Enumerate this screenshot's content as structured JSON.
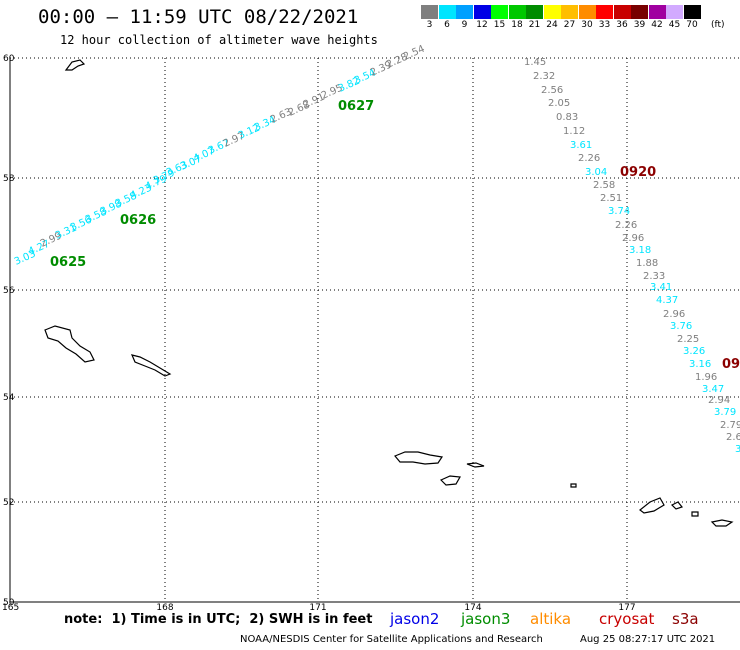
{
  "header": {
    "title": "00:00 – 11:59 UTC 08/22/2021",
    "subtitle": "12 hour collection of altimeter wave heights"
  },
  "legend": {
    "unit": "(ft)",
    "bins": [
      {
        "label": "3",
        "color": "#7f7f7f"
      },
      {
        "label": "6",
        "color": "#00e5ff"
      },
      {
        "label": "9",
        "color": "#00a0ff"
      },
      {
        "label": "12",
        "color": "#0000e6"
      },
      {
        "label": "15",
        "color": "#00ff00"
      },
      {
        "label": "18",
        "color": "#00c800"
      },
      {
        "label": "21",
        "color": "#008c00"
      },
      {
        "label": "24",
        "color": "#ffff00"
      },
      {
        "label": "27",
        "color": "#ffbe00"
      },
      {
        "label": "30",
        "color": "#ff8c00"
      },
      {
        "label": "33",
        "color": "#ff0000"
      },
      {
        "label": "36",
        "color": "#c80000"
      },
      {
        "label": "39",
        "color": "#780000"
      },
      {
        "label": "42",
        "color": "#a000a0"
      },
      {
        "label": "45",
        "color": "#d2aaff"
      },
      {
        "label": "70",
        "color": "#000000"
      }
    ]
  },
  "axes": {
    "x_ticks": [
      "165",
      "168",
      "171",
      "174",
      "177"
    ],
    "y_ticks": [
      "60",
      "58",
      "56",
      "54",
      "52",
      "50"
    ]
  },
  "tracks": [
    {
      "satellite": "jason3",
      "points": [
        {
          "value": "3.03",
          "color": "#00e5ff"
        },
        {
          "value": "4.27",
          "color": "#00e5ff"
        },
        {
          "value": "2.99",
          "color": "#7f7f7f"
        },
        {
          "value": "3.31",
          "color": "#00e5ff"
        },
        {
          "value": "3.56",
          "color": "#00e5ff"
        },
        {
          "value": "3.58",
          "color": "#00e5ff"
        },
        {
          "value": "3.98",
          "color": "#00e5ff"
        },
        {
          "value": "3.58",
          "color": "#00e5ff"
        },
        {
          "value": "4.23",
          "color": "#00e5ff"
        },
        {
          "value": "4.79",
          "color": "#00e5ff"
        },
        {
          "value": "3.79",
          "color": "#00e5ff"
        },
        {
          "value": "3.63",
          "color": "#00e5ff"
        },
        {
          "value": "3.07",
          "color": "#00e5ff"
        },
        {
          "value": "4.07",
          "color": "#00e5ff"
        },
        {
          "value": "3.67",
          "color": "#00e5ff"
        },
        {
          "value": "2.97",
          "color": "#7f7f7f"
        },
        {
          "value": "3.12",
          "color": "#00e5ff"
        },
        {
          "value": "3.34",
          "color": "#00e5ff"
        },
        {
          "value": "2.63",
          "color": "#7f7f7f"
        },
        {
          "value": "2.68",
          "color": "#7f7f7f"
        },
        {
          "value": "2.91",
          "color": "#7f7f7f"
        },
        {
          "value": "2.95",
          "color": "#7f7f7f"
        },
        {
          "value": "3.82",
          "color": "#00e5ff"
        },
        {
          "value": "3.54",
          "color": "#00e5ff"
        },
        {
          "value": "2.39",
          "color": "#7f7f7f"
        },
        {
          "value": "2.28",
          "color": "#7f7f7f"
        },
        {
          "value": "2.54",
          "color": "#7f7f7f"
        }
      ],
      "times": [
        {
          "label": "0625",
          "color": "#008c00"
        },
        {
          "label": "0626",
          "color": "#008c00"
        },
        {
          "label": "0627",
          "color": "#008c00"
        }
      ]
    },
    {
      "satellite": "s3a",
      "points": [
        {
          "value": "1.45",
          "color": "#7f7f7f"
        },
        {
          "value": "2.32",
          "color": "#7f7f7f"
        },
        {
          "value": "2.56",
          "color": "#7f7f7f"
        },
        {
          "value": "2.05",
          "color": "#7f7f7f"
        },
        {
          "value": "0.83",
          "color": "#7f7f7f"
        },
        {
          "value": "1.12",
          "color": "#7f7f7f"
        },
        {
          "value": "3.61",
          "color": "#00e5ff"
        },
        {
          "value": "2.26",
          "color": "#7f7f7f"
        },
        {
          "value": "3.04",
          "color": "#00e5ff"
        },
        {
          "value": "2.58",
          "color": "#7f7f7f"
        },
        {
          "value": "2.51",
          "color": "#7f7f7f"
        },
        {
          "value": "3.74",
          "color": "#00e5ff"
        },
        {
          "value": "2.26",
          "color": "#7f7f7f"
        },
        {
          "value": "2.96",
          "color": "#7f7f7f"
        },
        {
          "value": "3.18",
          "color": "#00e5ff"
        },
        {
          "value": "1.88",
          "color": "#7f7f7f"
        },
        {
          "value": "2.33",
          "color": "#7f7f7f"
        },
        {
          "value": "3.41",
          "color": "#00e5ff"
        },
        {
          "value": "4.37",
          "color": "#00e5ff"
        },
        {
          "value": "2.96",
          "color": "#7f7f7f"
        },
        {
          "value": "3.76",
          "color": "#00e5ff"
        },
        {
          "value": "2.25",
          "color": "#7f7f7f"
        },
        {
          "value": "3.26",
          "color": "#00e5ff"
        },
        {
          "value": "3.16",
          "color": "#00e5ff"
        },
        {
          "value": "1.96",
          "color": "#7f7f7f"
        },
        {
          "value": "3.47",
          "color": "#00e5ff"
        },
        {
          "value": "2.94",
          "color": "#7f7f7f"
        },
        {
          "value": "3.79",
          "color": "#00e5ff"
        },
        {
          "value": "2.79",
          "color": "#7f7f7f"
        },
        {
          "value": "2.6",
          "color": "#7f7f7f"
        },
        {
          "value": "3.",
          "color": "#00e5ff"
        }
      ],
      "times": [
        {
          "label": "0920",
          "color": "#8b0000"
        },
        {
          "label": "09",
          "color": "#8b0000"
        }
      ]
    }
  ],
  "footer": {
    "note": "note:  1) Time is in UTC;  2) SWH is in feet",
    "satellites": [
      {
        "name": "jason2",
        "color": "#0000e6"
      },
      {
        "name": "jason3",
        "color": "#008c00"
      },
      {
        "name": "altika",
        "color": "#ff8c00"
      },
      {
        "name": "cryosat",
        "color": "#c80000"
      },
      {
        "name": "s3a",
        "color": "#8b0000"
      }
    ],
    "credit": "NOAA/NESDIS Center for Satellite Applications and Research",
    "timestamp": "Aug 25 08:27:17 UTC 2021"
  }
}
